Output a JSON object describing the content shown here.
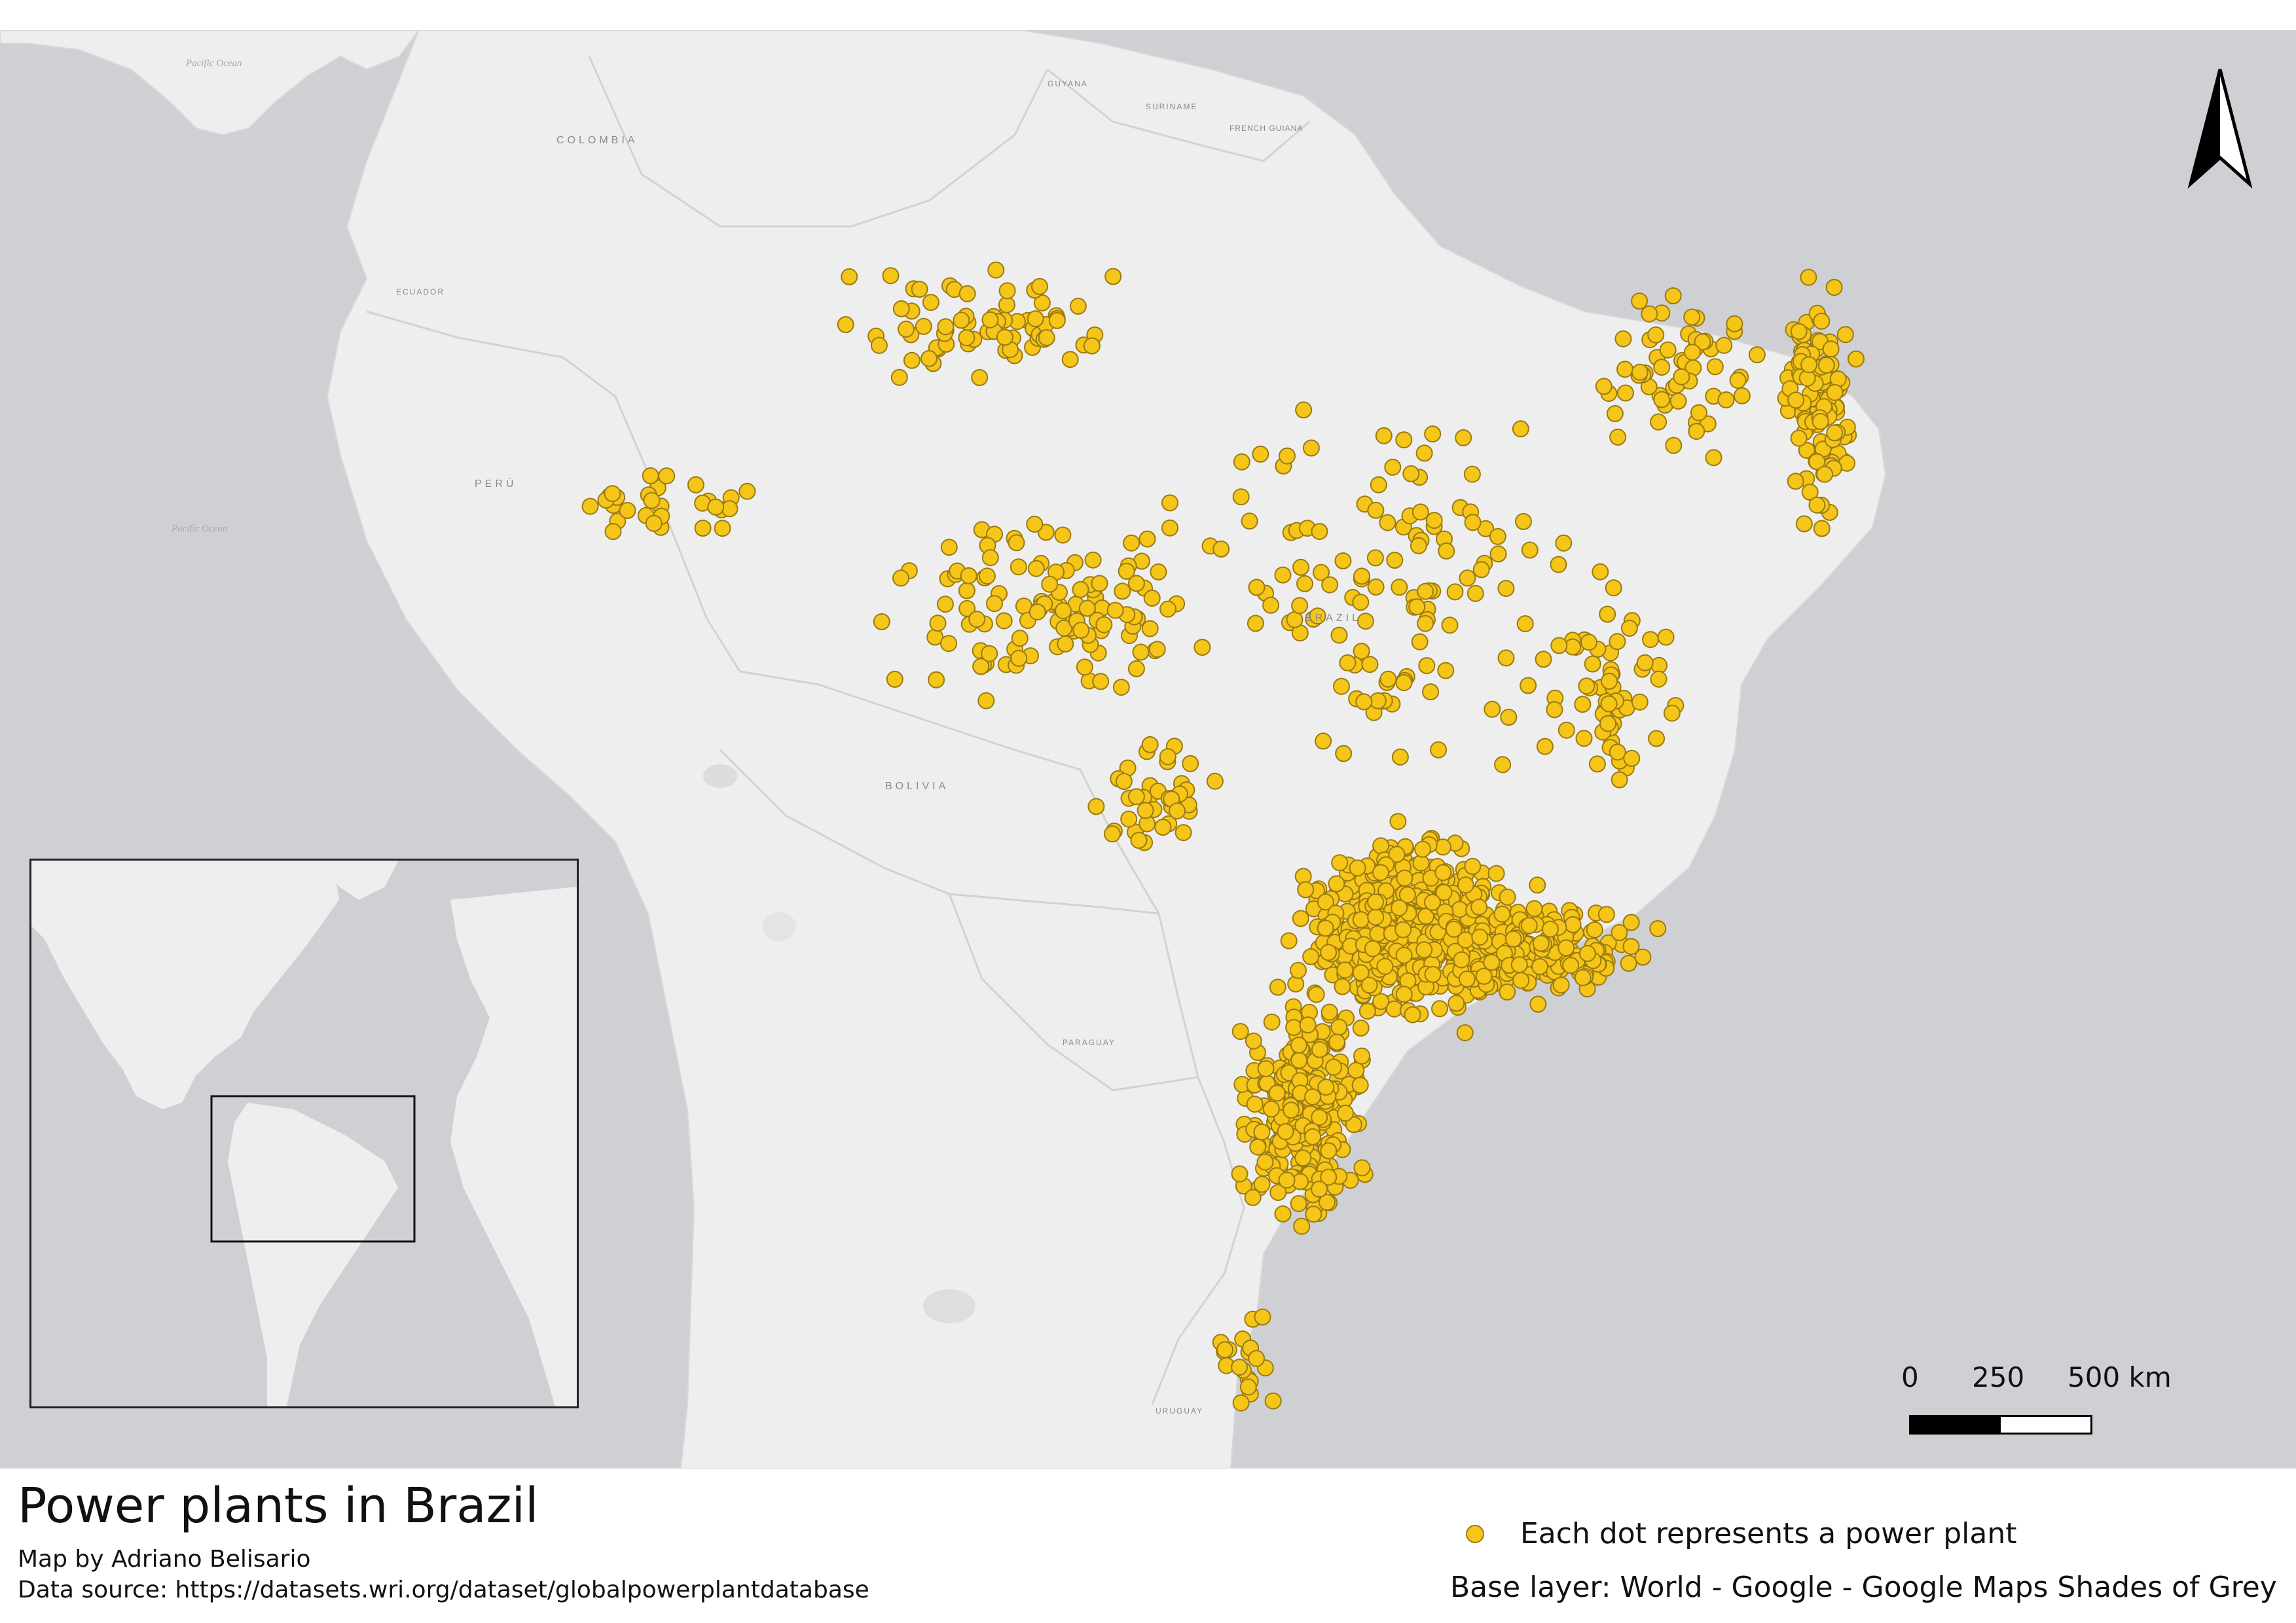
{
  "map": {
    "title": "Power plants in Brazil",
    "author": "Map by Adriano Belisario",
    "source": "Data source: https://datasets.wri.org/dataset/globalpowerplantdatabase",
    "base_layer": "Base layer: World - Google - Google Maps Shades of Grey",
    "legend_text": "Each dot represents a power plant",
    "colors": {
      "ocean": "#cfd0d4",
      "land": "#eeeeee",
      "border": "#d4d4d4",
      "dot": "#f5c518",
      "dot_stroke": "#9a7a12"
    },
    "country_labels": [
      "COLOMBIA",
      "GUYANA",
      "SURINAME",
      "FRENCH GUIANA",
      "ECUADOR",
      "PERÚ",
      "BRAZIL",
      "BOLIVIA",
      "PARAGUAY",
      "URUGUAY"
    ],
    "ocean_labels": [
      "Pacific Ocean",
      "Pacific Ocean"
    ],
    "scale": {
      "labels": [
        "0",
        "250",
        "500 km"
      ]
    },
    "north_arrow_icon": "north-arrow-icon"
  }
}
